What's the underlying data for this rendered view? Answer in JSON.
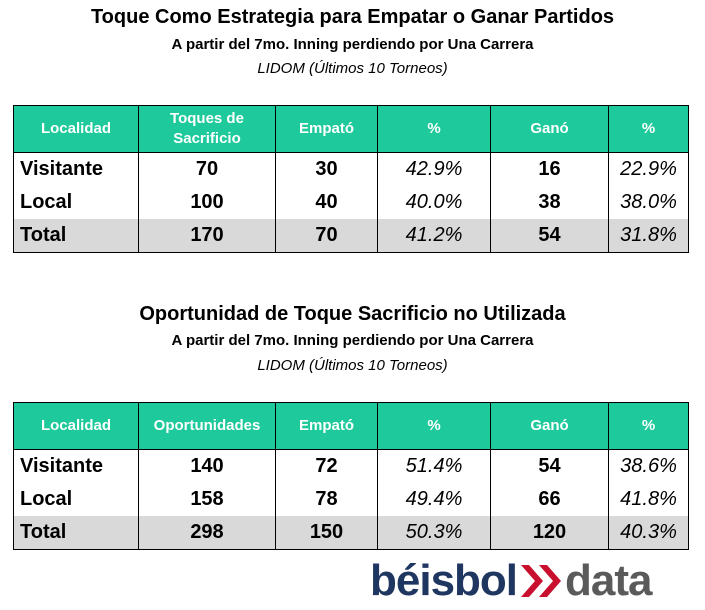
{
  "tables": [
    {
      "title": "Toque Como Estrategia para Empatar o Ganar Partidos",
      "subtitle": "A partir del 7mo. Inning perdiendo por Una Carrera",
      "source": "LIDOM (Últimos 10 Torneos)",
      "header": [
        "Localidad",
        "Toques de Sacrificio",
        "Empató",
        "%",
        "Ganó",
        "%"
      ],
      "rows": [
        [
          "Visitante",
          70,
          30,
          "42.9%",
          16,
          "22.9%"
        ],
        [
          "Local",
          100,
          40,
          "40.0%",
          38,
          "38.0%"
        ],
        [
          "Total",
          170,
          70,
          "41.2%",
          54,
          "31.8%"
        ]
      ]
    },
    {
      "title": "Oportunidad de Toque Sacrificio no Utilizada",
      "subtitle": "A partir del 7mo. Inning perdiendo por Una Carrera",
      "source": "LIDOM (Últimos 10 Torneos)",
      "header": [
        "Localidad",
        "Oportunidades",
        "Empató",
        "%",
        "Ganó",
        "%"
      ],
      "rows": [
        [
          "Visitante",
          140,
          72,
          "51.4%",
          54,
          "38.6%"
        ],
        [
          "Local",
          158,
          78,
          "49.4%",
          66,
          "41.8%"
        ],
        [
          "Total",
          298,
          150,
          "50.3%",
          120,
          "40.3%"
        ]
      ]
    }
  ],
  "logo": {
    "left": "béisbol",
    "right": "data"
  }
}
